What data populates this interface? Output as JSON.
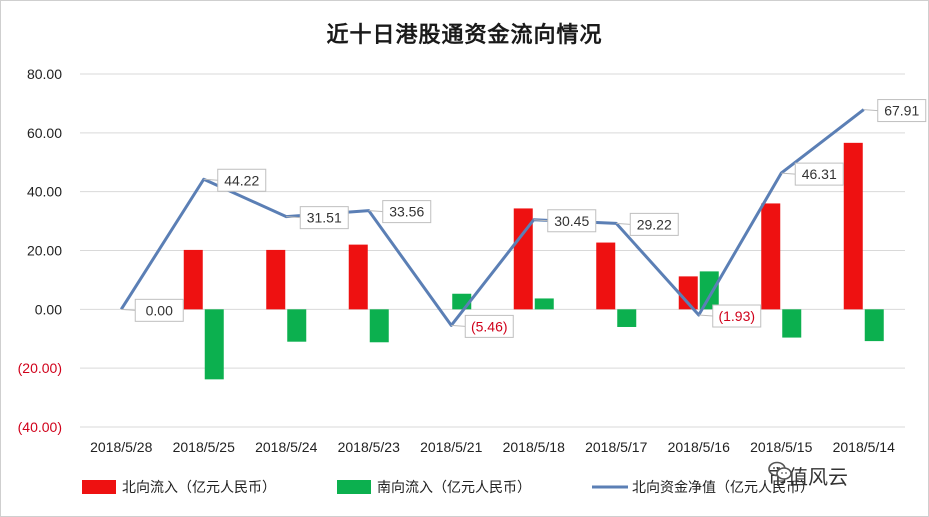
{
  "chart_data": {
    "type": "bar",
    "title": "近十日港股通资金流向情况",
    "categories": [
      "2018/5/28",
      "2018/5/25",
      "2018/5/24",
      "2018/5/23",
      "2018/5/21",
      "2018/5/18",
      "2018/5/17",
      "2018/5/16",
      "2018/5/15",
      "2018/5/14"
    ],
    "series": [
      {
        "name": "北向流入（亿元人民币）",
        "type": "bar",
        "color": "#ee1111",
        "values": [
          0,
          20.2,
          20.2,
          22.0,
          0,
          34.3,
          22.7,
          11.2,
          36.0,
          56.6
        ]
      },
      {
        "name": "南向流入（亿元人民币）",
        "type": "bar",
        "color": "#0cb04f",
        "values": [
          0,
          -23.8,
          -11.0,
          -11.2,
          5.3,
          3.7,
          -6.0,
          12.9,
          -9.6,
          -10.8
        ]
      },
      {
        "name": "北向资金净值（亿元人民币）",
        "type": "line",
        "color": "#5b7fb5",
        "values": [
          0.0,
          44.22,
          31.51,
          33.56,
          -5.46,
          30.45,
          29.22,
          -1.93,
          46.31,
          67.91
        ],
        "labels": [
          "0.00",
          "44.22",
          "31.51",
          "33.56",
          "(5.46)",
          "30.45",
          "29.22",
          "(1.93)",
          "46.31",
          "67.91"
        ]
      }
    ],
    "ylim": [
      -40,
      80
    ],
    "yticks": [
      {
        "value": 80,
        "label": "80.00"
      },
      {
        "value": 60,
        "label": "60.00"
      },
      {
        "value": 40,
        "label": "40.00"
      },
      {
        "value": 20,
        "label": "20.00"
      },
      {
        "value": 0,
        "label": "0.00"
      },
      {
        "value": -20,
        "label": "(20.00)"
      },
      {
        "value": -40,
        "label": "(40.00)"
      }
    ],
    "grid": true,
    "legend": "bottom",
    "negative_color": "#d0021b"
  },
  "watermark": {
    "text": "市值风云",
    "icon": "wechat-icon"
  }
}
